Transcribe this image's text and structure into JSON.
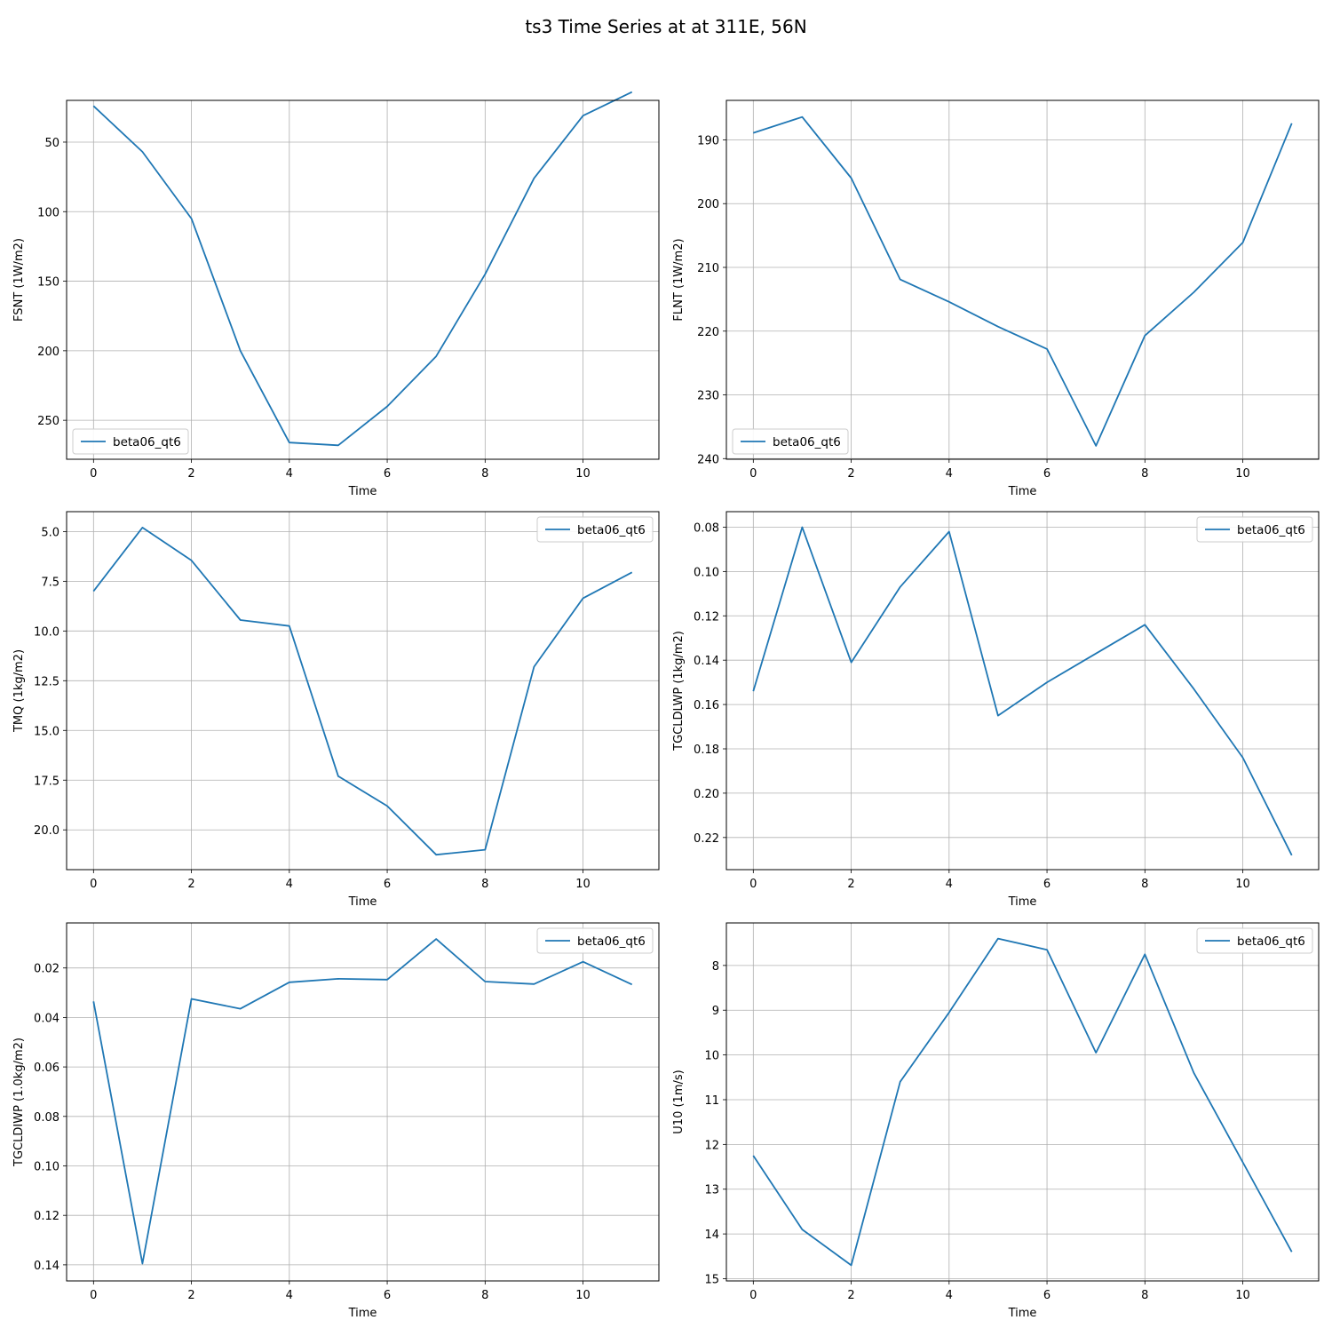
{
  "figure": {
    "title": "ts3 Time Series at at 311E, 56N"
  },
  "chart_data": [
    {
      "type": "line",
      "xlabel": "Time",
      "ylabel": "FSNT (1W/m2)",
      "y_inverted": true,
      "xlim": [
        -0.55,
        11.55
      ],
      "ylim": [
        278,
        20
      ],
      "xticks": [
        "0",
        "2",
        "4",
        "6",
        "8",
        "10"
      ],
      "yticks": [
        "50",
        "100",
        "150",
        "200",
        "250"
      ],
      "grid": true,
      "legend_position": "lower left",
      "x": [
        0,
        1,
        2,
        3,
        4,
        5,
        6,
        7,
        8,
        9,
        10,
        11
      ],
      "series": [
        {
          "name": "beta06_qt6",
          "values": [
            24,
            57,
            105,
            200,
            266,
            268,
            240,
            204,
            145,
            76,
            31,
            14
          ]
        }
      ]
    },
    {
      "type": "line",
      "xlabel": "Time",
      "ylabel": "FLNT (1W/m2)",
      "y_inverted": true,
      "xlim": [
        -0.55,
        11.55
      ],
      "ylim": [
        240.1,
        183.8
      ],
      "xticks": [
        "0",
        "2",
        "4",
        "6",
        "8",
        "10"
      ],
      "yticks": [
        "190",
        "200",
        "210",
        "220",
        "230",
        "240"
      ],
      "grid": true,
      "legend_position": "lower left",
      "x": [
        0,
        1,
        2,
        3,
        4,
        5,
        6,
        7,
        8,
        9,
        10,
        11
      ],
      "series": [
        {
          "name": "beta06_qt6",
          "values": [
            188.9,
            186.4,
            196.0,
            211.9,
            215.4,
            219.3,
            222.8,
            238.0,
            220.7,
            213.9,
            206.1,
            187.4
          ]
        }
      ]
    },
    {
      "type": "line",
      "xlabel": "Time",
      "ylabel": "TMQ (1kg/m2)",
      "y_inverted": true,
      "xlim": [
        -0.55,
        11.55
      ],
      "ylim": [
        22.0,
        4.0
      ],
      "xticks": [
        "0",
        "2",
        "4",
        "6",
        "8",
        "10"
      ],
      "yticks": [
        "5.0",
        "7.5",
        "10.0",
        "12.5",
        "15.0",
        "17.5",
        "20.0"
      ],
      "grid": true,
      "legend_position": "upper right",
      "x": [
        0,
        1,
        2,
        3,
        4,
        5,
        6,
        7,
        8,
        9,
        10,
        11
      ],
      "series": [
        {
          "name": "beta06_qt6",
          "values": [
            8.0,
            4.8,
            6.45,
            9.45,
            9.75,
            17.3,
            18.8,
            21.25,
            21.0,
            11.8,
            8.35,
            7.05
          ]
        }
      ]
    },
    {
      "type": "line",
      "xlabel": "Time",
      "ylabel": "TGCLDLWP (1kg/m2)",
      "y_inverted": true,
      "xlim": [
        -0.55,
        11.55
      ],
      "ylim": [
        0.2345,
        0.073
      ],
      "xticks": [
        "0",
        "2",
        "4",
        "6",
        "8",
        "10"
      ],
      "yticks": [
        "0.08",
        "0.10",
        "0.12",
        "0.14",
        "0.16",
        "0.18",
        "0.20",
        "0.22"
      ],
      "grid": true,
      "legend_position": "upper right",
      "x": [
        0,
        1,
        2,
        3,
        4,
        5,
        6,
        7,
        8,
        9,
        10,
        11
      ],
      "series": [
        {
          "name": "beta06_qt6",
          "values": [
            0.154,
            0.08,
            0.141,
            0.107,
            0.082,
            0.165,
            0.15,
            0.137,
            0.124,
            0.153,
            0.184,
            0.228
          ]
        }
      ]
    },
    {
      "type": "line",
      "xlabel": "Time",
      "ylabel": "TGCLDIWP (1.0kg/m2)",
      "y_inverted": true,
      "xlim": [
        -0.55,
        11.55
      ],
      "ylim": [
        0.1465,
        0.0018
      ],
      "xticks": [
        "0",
        "2",
        "4",
        "6",
        "8",
        "10"
      ],
      "yticks": [
        "0.02",
        "0.04",
        "0.06",
        "0.08",
        "0.10",
        "0.12",
        "0.14"
      ],
      "grid": true,
      "legend_position": "upper right",
      "x": [
        0,
        1,
        2,
        3,
        4,
        5,
        6,
        7,
        8,
        9,
        10,
        11
      ],
      "series": [
        {
          "name": "beta06_qt6",
          "values": [
            0.0335,
            0.1395,
            0.0325,
            0.0365,
            0.0258,
            0.0244,
            0.0247,
            0.0083,
            0.0255,
            0.0265,
            0.0175,
            0.0267
          ]
        }
      ]
    },
    {
      "type": "line",
      "xlabel": "Time",
      "ylabel": "U10 (1m/s)",
      "y_inverted": true,
      "xlim": [
        -0.55,
        11.55
      ],
      "ylim": [
        15.05,
        7.05
      ],
      "xticks": [
        "0",
        "2",
        "4",
        "6",
        "8",
        "10"
      ],
      "yticks": [
        "8",
        "9",
        "10",
        "11",
        "12",
        "13",
        "14",
        "15"
      ],
      "grid": true,
      "legend_position": "upper right",
      "x": [
        0,
        1,
        2,
        3,
        4,
        5,
        6,
        7,
        8,
        9,
        10,
        11
      ],
      "series": [
        {
          "name": "beta06_qt6",
          "values": [
            12.25,
            13.9,
            14.7,
            10.6,
            9.05,
            7.4,
            7.65,
            9.95,
            7.75,
            10.4,
            12.4,
            14.4
          ]
        }
      ]
    }
  ]
}
